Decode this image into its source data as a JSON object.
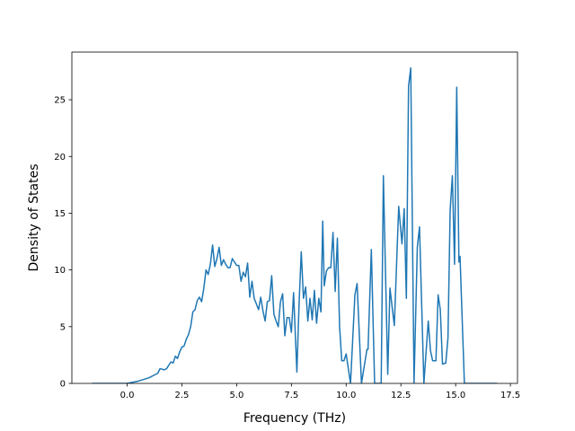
{
  "chart_data": {
    "type": "line",
    "xlabel": "Frequency (THz)",
    "ylabel": "Density of States",
    "x": [
      -1.6,
      0.0,
      0.5,
      1.0,
      1.4,
      1.5,
      1.7,
      1.8,
      1.9,
      2.0,
      2.1,
      2.2,
      2.3,
      2.4,
      2.5,
      2.6,
      2.7,
      2.8,
      2.9,
      3.0,
      3.1,
      3.2,
      3.3,
      3.4,
      3.5,
      3.6,
      3.7,
      3.8,
      3.9,
      4.0,
      4.1,
      4.2,
      4.3,
      4.4,
      4.5,
      4.6,
      4.7,
      4.8,
      4.9,
      5.0,
      5.1,
      5.2,
      5.3,
      5.4,
      5.5,
      5.6,
      5.7,
      5.8,
      5.9,
      6.0,
      6.1,
      6.2,
      6.3,
      6.4,
      6.5,
      6.6,
      6.7,
      6.8,
      6.9,
      7.0,
      7.1,
      7.2,
      7.3,
      7.4,
      7.5,
      7.6,
      7.75,
      7.85,
      7.95,
      8.05,
      8.15,
      8.25,
      8.35,
      8.45,
      8.55,
      8.65,
      8.75,
      8.85,
      8.93,
      9.0,
      9.1,
      9.2,
      9.3,
      9.4,
      9.5,
      9.6,
      9.7,
      9.8,
      9.9,
      10.0,
      10.2,
      10.4,
      10.5,
      10.7,
      10.95,
      11.0,
      11.15,
      11.3,
      11.6,
      11.7,
      11.9,
      12.0,
      12.2,
      12.4,
      12.55,
      12.65,
      12.75,
      12.85,
      12.95,
      13.1,
      13.25,
      13.35,
      13.55,
      13.75,
      13.85,
      13.95,
      14.1,
      14.2,
      14.3,
      14.4,
      14.55,
      14.65,
      14.75,
      14.85,
      14.95,
      15.05,
      15.15,
      15.2,
      15.4,
      16.9
    ],
    "series": [
      {
        "color": "#1f77b4",
        "values": [
          0,
          0,
          0.2,
          0.5,
          0.9,
          1.3,
          1.2,
          1.3,
          1.6,
          1.9,
          1.8,
          2.4,
          2.2,
          2.8,
          3.2,
          3.3,
          3.9,
          4.3,
          5.0,
          6.3,
          6.5,
          7.3,
          7.6,
          7.2,
          8.4,
          10.0,
          9.6,
          10.5,
          12.2,
          10.3,
          11.0,
          12.0,
          10.4,
          10.9,
          10.5,
          10.2,
          10.2,
          11.0,
          10.7,
          10.4,
          10.4,
          9.0,
          9.8,
          9.4,
          10.6,
          7.6,
          9.0,
          7.5,
          7.0,
          6.5,
          7.6,
          6.4,
          5.5,
          7.2,
          7.3,
          9.5,
          6.1,
          5.5,
          5.0,
          7.2,
          7.9,
          4.2,
          5.8,
          5.8,
          4.5,
          8.0,
          1.0,
          7.0,
          11.6,
          7.5,
          8.5,
          5.5,
          7.5,
          5.6,
          8.2,
          5.3,
          7.5,
          6.3,
          14.3,
          8.6,
          9.9,
          10.2,
          10.2,
          13.3,
          8.1,
          12.8,
          5.0,
          2.0,
          2.0,
          2.6,
          0,
          7.8,
          8.8,
          0,
          3.0,
          3.0,
          11.8,
          0,
          0,
          18.3,
          0.8,
          8.4,
          5.1,
          15.6,
          12.3,
          15.4,
          7.5,
          26.2,
          27.8,
          0,
          12.0,
          13.8,
          0,
          5.5,
          2.9,
          2.0,
          2.0,
          7.8,
          6.5,
          1.7,
          1.8,
          4.0,
          15.3,
          18.3,
          10.5,
          26.1,
          10.7,
          11.2,
          0,
          0
        ]
      }
    ],
    "xlim": [
      -2.525,
      17.825
    ],
    "ylim": [
      0,
      29.2
    ],
    "xticks": [
      {
        "value": 0.0,
        "label": "0.0"
      },
      2.5,
      {
        "value": 5.0,
        "label": "5.0"
      },
      7.5,
      {
        "value": 10.0,
        "label": "10.0"
      },
      12.5,
      {
        "value": 15.0,
        "label": "15.0"
      },
      17.5
    ],
    "yticks": [
      0,
      5,
      10,
      15,
      20,
      25
    ]
  }
}
